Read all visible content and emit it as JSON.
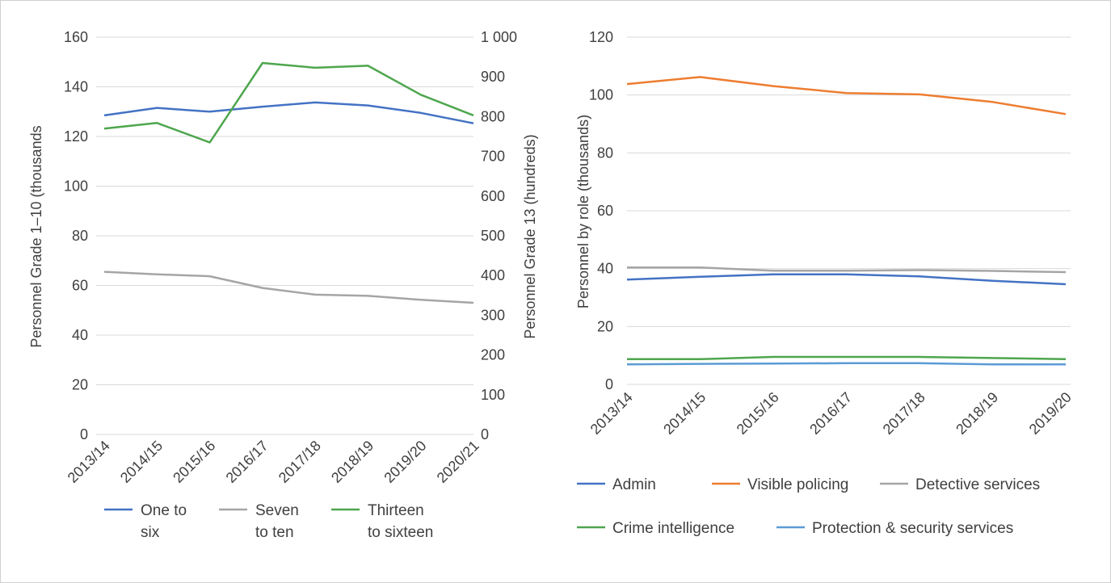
{
  "chart_data": [
    {
      "type": "line",
      "categories": [
        "2013/14",
        "2014/15",
        "2015/16",
        "2016/17",
        "2017/18",
        "2018/19",
        "2019/20",
        "2020/21"
      ],
      "ylabel": "Personnel Grade 1–10 (thousands",
      "ylim": [
        0,
        160
      ],
      "yticks": [
        0,
        20,
        40,
        60,
        80,
        100,
        120,
        140,
        160
      ],
      "ytick_labels": [
        "0",
        "20",
        "40",
        "60",
        "80",
        "100",
        "120",
        "140",
        "160"
      ],
      "y2label": "Personnel Grade 13 (hundreds)",
      "y2lim": [
        0,
        1000
      ],
      "y2ticks": [
        0,
        100,
        200,
        300,
        400,
        500,
        600,
        700,
        800,
        900,
        1000
      ],
      "y2tick_labels": [
        "0",
        "100",
        "200",
        "300",
        "400",
        "500",
        "600",
        "700",
        "800",
        "900",
        "1 000"
      ],
      "grid": true,
      "legend_position": "bottom",
      "series": [
        {
          "name": "One to six",
          "legend_lines": [
            "One to",
            "six"
          ],
          "axis": "left",
          "color": "#4472c4",
          "values": [
            128.5,
            131.5,
            130,
            132,
            133.7,
            132.5,
            129.5,
            125.3
          ]
        },
        {
          "name": "Seven to ten",
          "legend_lines": [
            "Seven",
            "to ten"
          ],
          "axis": "left",
          "color": "#a5a5a5",
          "values": [
            65.5,
            64.5,
            63.7,
            59,
            56.3,
            55.8,
            54.2,
            53
          ]
        },
        {
          "name": "Thirteen to sixteen",
          "legend_lines": [
            "Thirteen",
            "to sixteen"
          ],
          "axis": "right",
          "color": "#4ea64e",
          "values": [
            770,
            784,
            735,
            935,
            923,
            928,
            855,
            803
          ]
        }
      ]
    },
    {
      "type": "line",
      "categories": [
        "2013/14",
        "2014/15",
        "2015/16",
        "2016/17",
        "2017/18",
        "2018/19",
        "2019/20"
      ],
      "ylabel": "Personnel by role (thousands)",
      "ylim": [
        0,
        120
      ],
      "yticks": [
        0,
        20,
        40,
        60,
        80,
        100,
        120
      ],
      "ytick_labels": [
        "0",
        "20",
        "40",
        "60",
        "80",
        "100",
        "120"
      ],
      "grid": true,
      "legend_position": "bottom",
      "series": [
        {
          "name": "Admin",
          "color": "#4472c4",
          "values": [
            36.2,
            37.2,
            38,
            38,
            37.3,
            35.8,
            34.6
          ]
        },
        {
          "name": "Visible policing",
          "color": "#ed7d31",
          "values": [
            103.8,
            106.2,
            103.1,
            100.7,
            100.2,
            97.6,
            93.4
          ]
        },
        {
          "name": "Detective services",
          "color": "#a5a5a5",
          "values": [
            40.4,
            40.4,
            39.3,
            39.3,
            39.5,
            39.2,
            38.8
          ]
        },
        {
          "name": "Crime intelligence",
          "color": "#4ea64e",
          "values": [
            8.7,
            8.7,
            9.5,
            9.5,
            9.5,
            9.1,
            8.7
          ]
        },
        {
          "name": "Protection & security services",
          "color": "#5b9bd5",
          "values": [
            6.9,
            7.1,
            7.2,
            7.3,
            7.3,
            6.9,
            6.9
          ]
        }
      ]
    }
  ]
}
